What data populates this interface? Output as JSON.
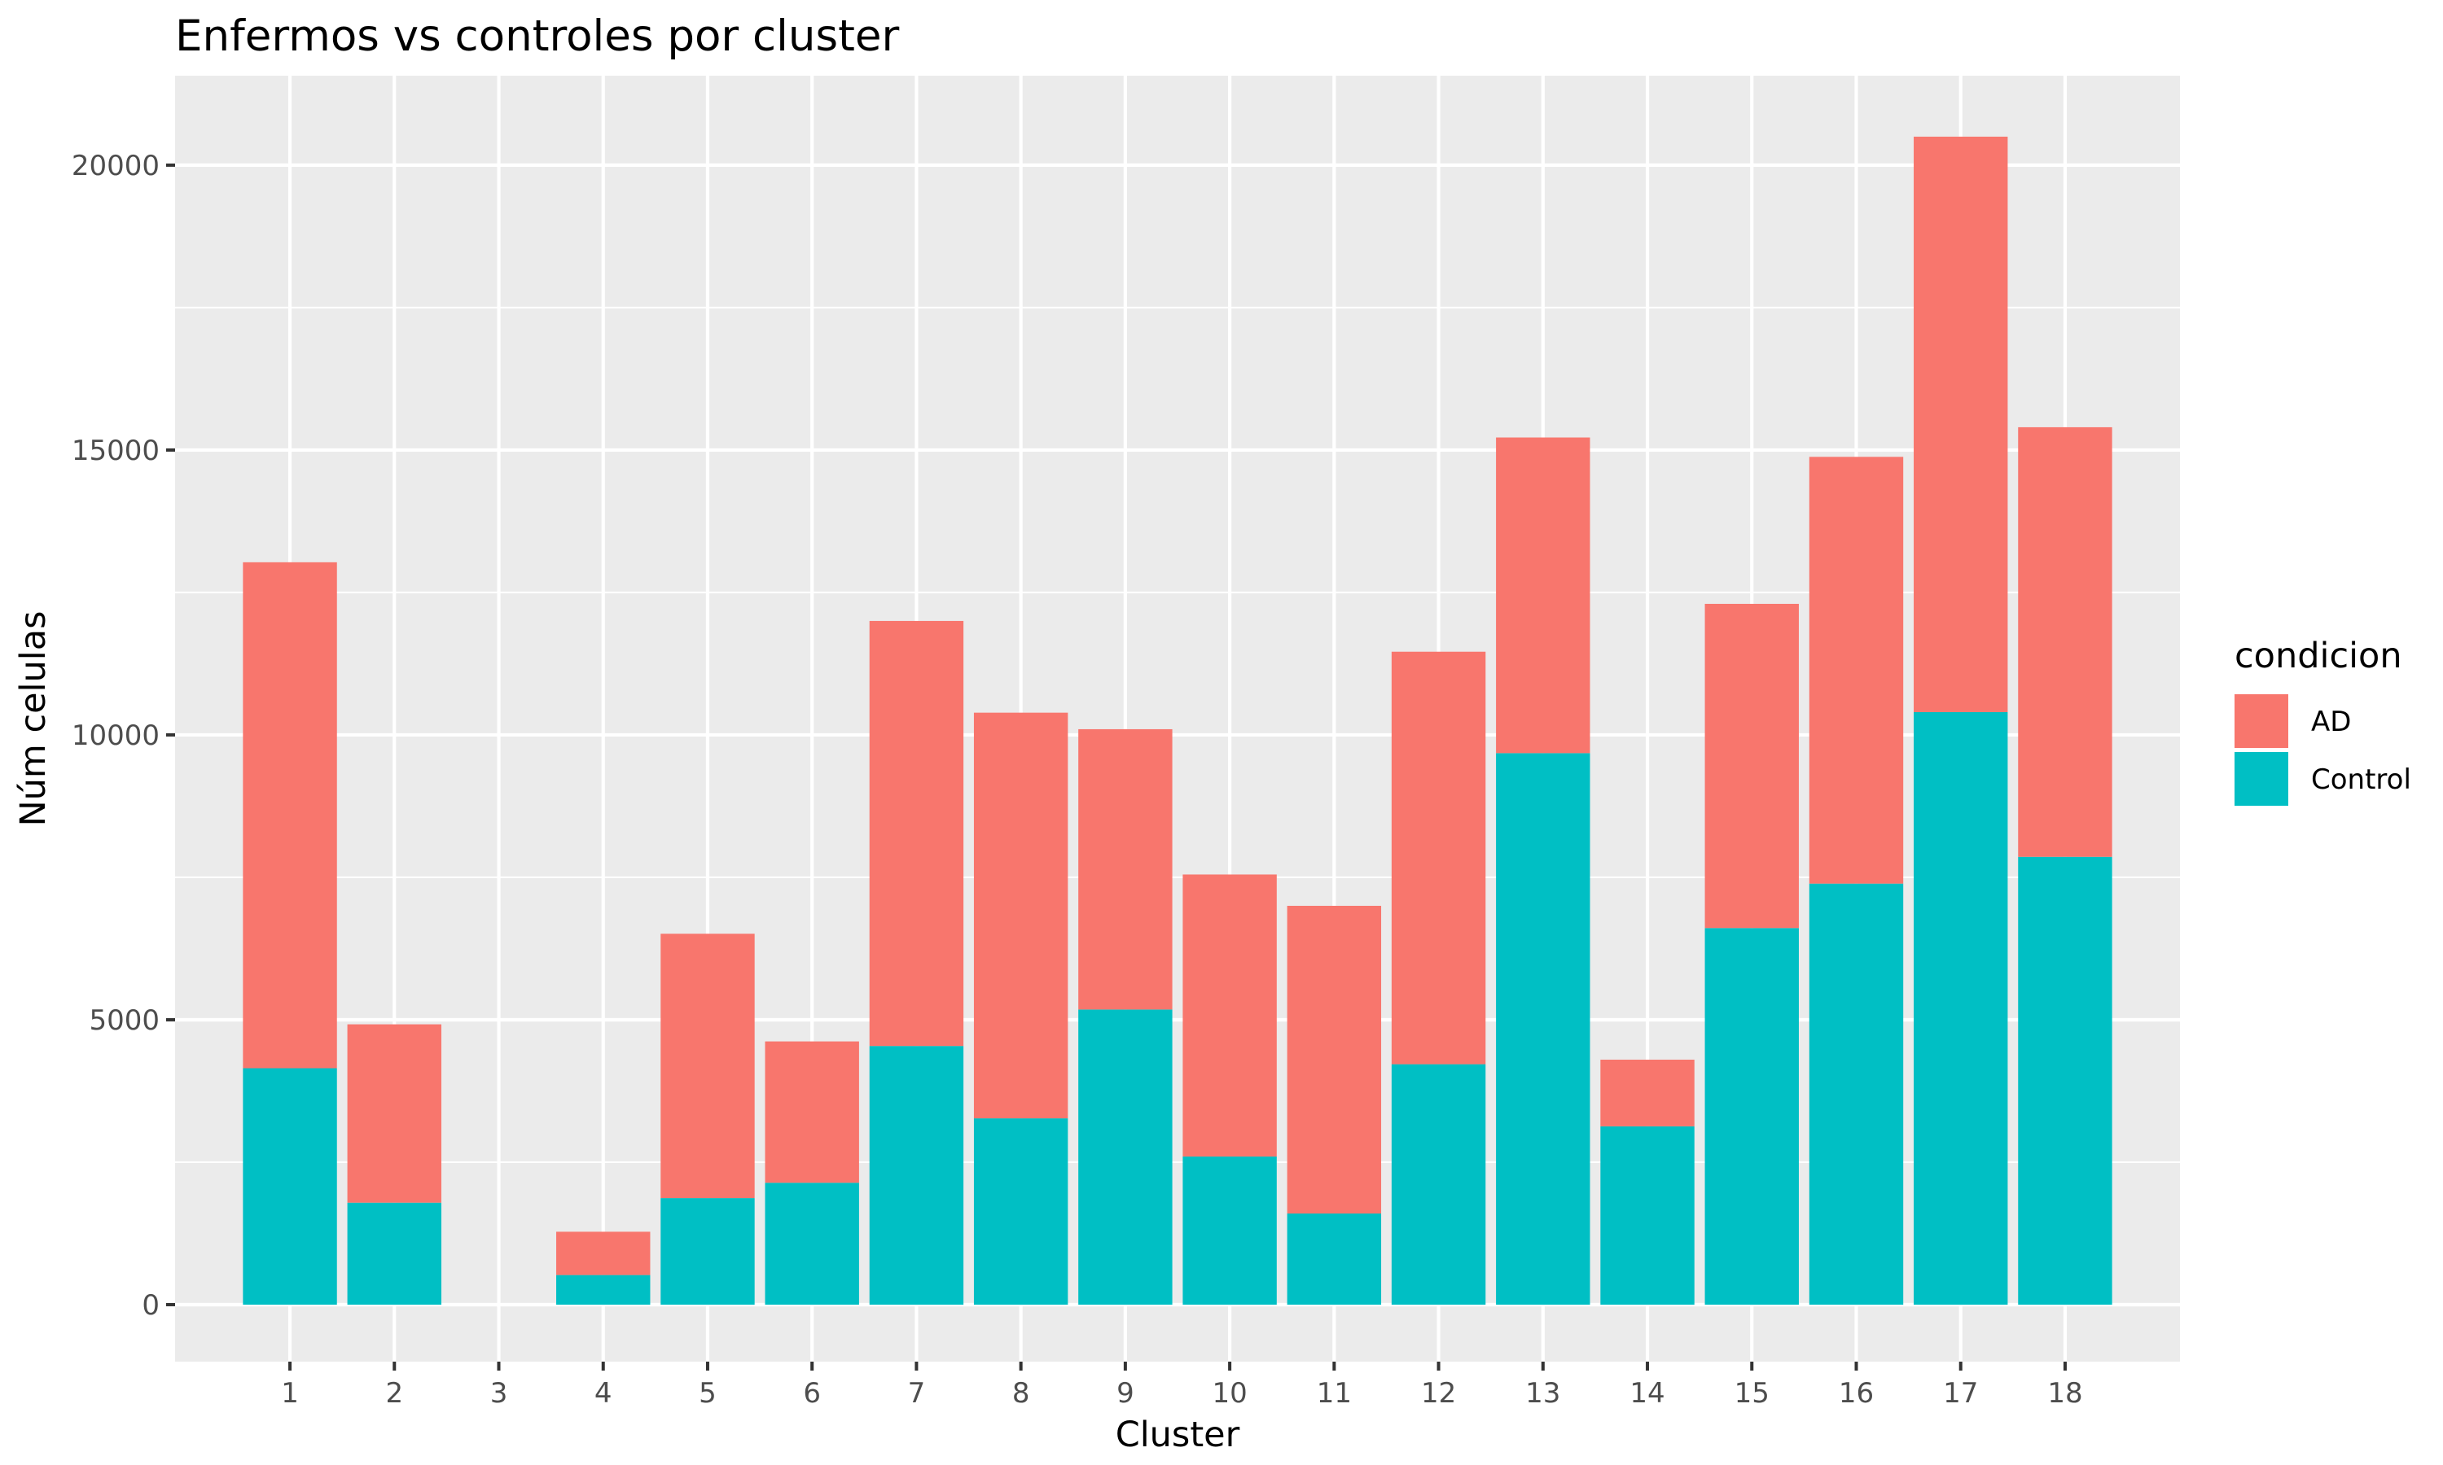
{
  "chart_data": {
    "type": "bar",
    "stacked": true,
    "title": "Enfermos vs controles por cluster",
    "xlabel": "Cluster",
    "ylabel": "Núm celulas",
    "categories": [
      "1",
      "2",
      "3",
      "4",
      "5",
      "6",
      "7",
      "8",
      "9",
      "10",
      "11",
      "12",
      "13",
      "14",
      "15",
      "16",
      "17",
      "18"
    ],
    "series": [
      {
        "name": "AD",
        "color": "#F8766D",
        "values": [
          8880,
          3130,
          0,
          760,
          4640,
          2480,
          7460,
          7120,
          4920,
          4950,
          5400,
          7240,
          5540,
          1170,
          5690,
          7490,
          10100,
          7540
        ]
      },
      {
        "name": "Control",
        "color": "#00BFC4",
        "values": [
          4150,
          1790,
          0,
          520,
          1870,
          2140,
          4540,
          3270,
          5180,
          2600,
          1600,
          4220,
          9680,
          3130,
          6610,
          7390,
          10400,
          7860
        ]
      }
    ],
    "yticks": [
      0,
      5000,
      10000,
      15000,
      20000
    ],
    "ylim": [
      -1000,
      21570
    ],
    "grid": true,
    "legend": {
      "title": "condicion",
      "placement": "right"
    }
  }
}
